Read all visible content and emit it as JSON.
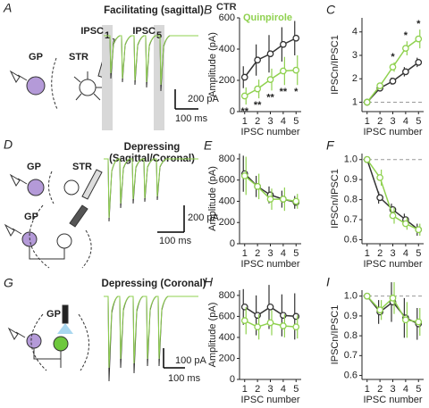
{
  "figure": {
    "rows": [
      {
        "letter": "A",
        "title": [
          "Facilitating (sagittal)"
        ],
        "markers": [
          {
            "text": "IPSC",
            "sub": "1"
          },
          {
            "text": "IPSC",
            "sub": "5"
          }
        ],
        "diagram": [
          "GP",
          "STR"
        ],
        "scale": [
          "200 pA",
          "100 ms"
        ]
      },
      {
        "letter": "D",
        "title": [
          "Depressing",
          "(Sagittal/Coronal)"
        ],
        "diagram": [
          "GP",
          "STR",
          "GP"
        ],
        "scale": [
          "200 pA",
          "100 ms"
        ]
      },
      {
        "letter": "G",
        "title": [
          "Depressing (Coronal)"
        ],
        "diagram": [
          "GP"
        ],
        "scale": [
          "100 pA",
          "100 ms"
        ]
      }
    ]
  },
  "chart_data": [
    {
      "type": "line",
      "panel": "B",
      "xlabel": "IPSC number",
      "ylabel": "Amplitude (pA)",
      "x": [
        1,
        2,
        3,
        4,
        5
      ],
      "xlim": [
        0.6,
        5.4
      ],
      "xticks": [
        1,
        2,
        3,
        4,
        5
      ],
      "ylim": [
        0,
        600
      ],
      "yticks": [
        0,
        200,
        400,
        600
      ],
      "legend": "upper left",
      "series": [
        {
          "name": "CTR",
          "color": "#333333",
          "values": [
            220,
            330,
            370,
            430,
            470
          ],
          "errors": [
            70,
            100,
            120,
            110,
            110
          ]
        },
        {
          "name": "Quinpirole",
          "color": "#8fd14f",
          "values": [
            100,
            145,
            205,
            260,
            265
          ],
          "errors": [
            55,
            60,
            70,
            90,
            95
          ]
        }
      ],
      "annotations": [
        {
          "x": 1,
          "text": "**"
        },
        {
          "x": 2,
          "text": "**"
        },
        {
          "x": 3,
          "text": "**"
        },
        {
          "x": 4,
          "text": "**"
        },
        {
          "x": 5,
          "text": "*"
        }
      ],
      "annotation_position": "below"
    },
    {
      "type": "line",
      "panel": "C",
      "xlabel": "IPSC number",
      "ylabel": "IPSCn/IPSC1",
      "x": [
        1,
        2,
        3,
        4,
        5
      ],
      "xlim": [
        0.6,
        5.4
      ],
      "xticks": [
        1,
        2,
        3,
        4,
        5
      ],
      "ylim": [
        0.6,
        4.6
      ],
      "yticks": [
        1,
        2,
        3,
        4
      ],
      "hline": 1,
      "series": [
        {
          "name": "CTR",
          "color": "#333333",
          "values": [
            1,
            1.6,
            1.9,
            2.3,
            2.7
          ],
          "errors": [
            0,
            0.1,
            0.15,
            0.2,
            0.2
          ]
        },
        {
          "name": "Quinpirole",
          "color": "#8fd14f",
          "values": [
            1,
            1.7,
            2.5,
            3.3,
            3.7
          ],
          "errors": [
            0,
            0.1,
            0.2,
            0.3,
            0.4
          ]
        }
      ],
      "annotations": [
        {
          "x": 3,
          "text": "*"
        },
        {
          "x": 4,
          "text": "*"
        },
        {
          "x": 5,
          "text": "*"
        }
      ],
      "annotation_position": "above"
    },
    {
      "type": "line",
      "panel": "E",
      "xlabel": "IPSC number",
      "ylabel": "Amplitude (pA)",
      "x": [
        1,
        2,
        3,
        4,
        5
      ],
      "xlim": [
        0.6,
        5.4
      ],
      "xticks": [
        1,
        2,
        3,
        4,
        5
      ],
      "ylim": [
        0,
        850
      ],
      "yticks": [
        0,
        200,
        400,
        600,
        800
      ],
      "series": [
        {
          "name": "CTR",
          "color": "#333333",
          "values": [
            660,
            540,
            460,
            420,
            390
          ],
          "errors": [
            170,
            100,
            80,
            80,
            60
          ]
        },
        {
          "name": "Quinpirole",
          "color": "#8fd14f",
          "values": [
            640,
            540,
            420,
            420,
            400
          ],
          "errors": [
            180,
            120,
            100,
            110,
            70
          ]
        }
      ]
    },
    {
      "type": "line",
      "panel": "F",
      "xlabel": "IPSC number",
      "ylabel": "IPSCn/IPSC1",
      "x": [
        1,
        2,
        3,
        4,
        5
      ],
      "xlim": [
        0.6,
        5.4
      ],
      "xticks": [
        1,
        2,
        3,
        4,
        5
      ],
      "ylim": [
        0.58,
        1.03
      ],
      "yticks": [
        0.6,
        0.7,
        0.8,
        0.9,
        {
          "value": 1,
          "label": "1.0"
        }
      ],
      "hline": 1,
      "series": [
        {
          "name": "CTR",
          "color": "#333333",
          "values": [
            1,
            0.81,
            0.75,
            0.7,
            0.65
          ],
          "errors": [
            0,
            0.03,
            0.03,
            0.03,
            0.03
          ]
        },
        {
          "name": "Quinpirole",
          "color": "#8fd14f",
          "values": [
            1,
            0.91,
            0.72,
            0.68,
            0.65
          ],
          "errors": [
            0,
            0.04,
            0.04,
            0.03,
            0.03
          ]
        }
      ]
    },
    {
      "type": "line",
      "panel": "H",
      "xlabel": "IPSC number",
      "ylabel": "Amplitude (pA)",
      "x": [
        1,
        2,
        3,
        4,
        5
      ],
      "xlim": [
        0.6,
        5.4
      ],
      "xticks": [
        1,
        2,
        3,
        4,
        5
      ],
      "ylim": [
        0,
        850
      ],
      "yticks": [
        0,
        200,
        400,
        600,
        800
      ],
      "series": [
        {
          "name": "CTR",
          "color": "#333333",
          "values": [
            690,
            610,
            690,
            610,
            600
          ],
          "errors": [
            170,
            190,
            210,
            200,
            220
          ]
        },
        {
          "name": "Quinpirole",
          "color": "#8fd14f",
          "values": [
            560,
            500,
            540,
            510,
            500
          ],
          "errors": [
            130,
            120,
            120,
            110,
            110
          ]
        }
      ]
    },
    {
      "type": "line",
      "panel": "I",
      "xlabel": "IPSC number",
      "ylabel": "IPSCn/IPSC1",
      "x": [
        1,
        2,
        3,
        4,
        5
      ],
      "xlim": [
        0.6,
        5.4
      ],
      "xticks": [
        1,
        2,
        3,
        4,
        5
      ],
      "ylim": [
        0.58,
        1.03
      ],
      "yticks": [
        0.6,
        0.7,
        0.8,
        0.9,
        {
          "value": 1,
          "label": "1.0"
        }
      ],
      "hline": 1,
      "series": [
        {
          "name": "CTR",
          "color": "#333333",
          "values": [
            1,
            0.92,
            0.97,
            0.89,
            0.86
          ],
          "errors": [
            0,
            0.06,
            0.1,
            0.1,
            0.08
          ]
        },
        {
          "name": "Quinpirole",
          "color": "#8fd14f",
          "values": [
            1,
            0.93,
            0.99,
            0.88,
            0.87
          ],
          "errors": [
            0,
            0.05,
            0.08,
            0.09,
            0.07
          ]
        }
      ]
    }
  ]
}
